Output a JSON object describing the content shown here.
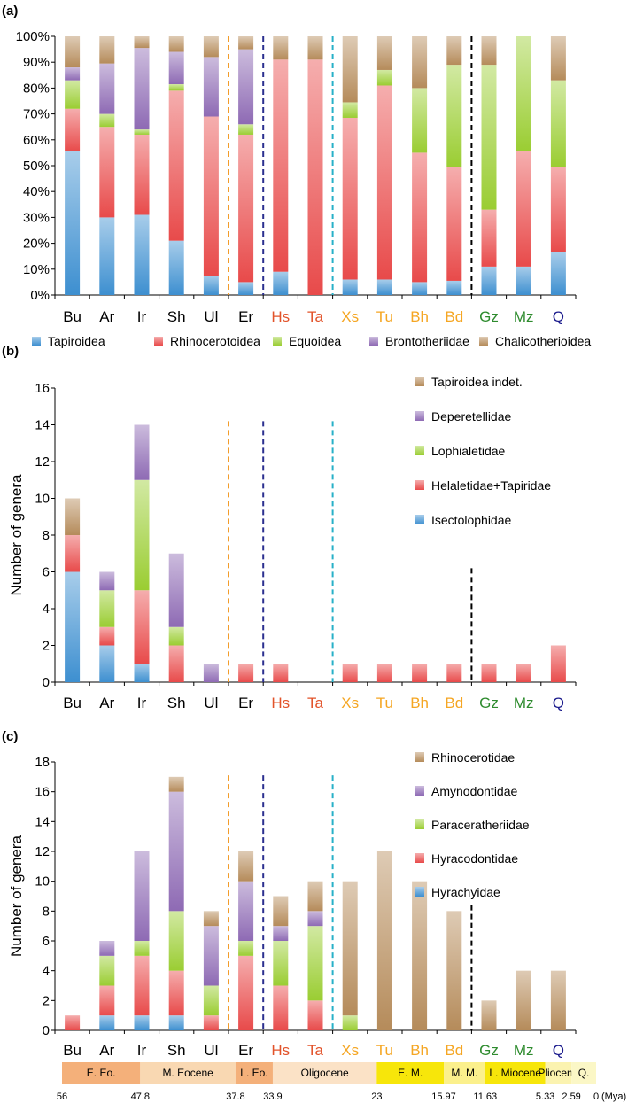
{
  "categories": [
    "Bu",
    "Ar",
    "Ir",
    "Sh",
    "Ul",
    "Er",
    "Hs",
    "Ta",
    "Xs",
    "Tu",
    "Bh",
    "Bd",
    "Gz",
    "Mz",
    "Q"
  ],
  "category_colors": [
    "#000000",
    "#000000",
    "#000000",
    "#000000",
    "#000000",
    "#000000",
    "#e2532a",
    "#e2532a",
    "#f5a623",
    "#f5a623",
    "#f5a623",
    "#f5a623",
    "#2e8b2e",
    "#2e8b2e",
    "#1a1a8c"
  ],
  "divider_lines": [
    {
      "after_index": 4,
      "color": "#f39c2a"
    },
    {
      "after_index": 5,
      "color": "#2b2f8f"
    },
    {
      "after_index": 7,
      "color": "#27b0c8"
    },
    {
      "after_index": 11,
      "color": "#000000"
    }
  ],
  "chart_data": [
    {
      "panel": "(a)",
      "type": "bar",
      "stacked": true,
      "normalized": true,
      "ylim": [
        0,
        100
      ],
      "yticks": [
        "0%",
        "10%",
        "20%",
        "30%",
        "40%",
        "50%",
        "60%",
        "70%",
        "80%",
        "90%",
        "100%"
      ],
      "ylabel": "",
      "legend_position": "bottom",
      "categories": [
        "Bu",
        "Ar",
        "Ir",
        "Sh",
        "Ul",
        "Er",
        "Hs",
        "Ta",
        "Xs",
        "Tu",
        "Bh",
        "Bd",
        "Gz",
        "Mz",
        "Q"
      ],
      "series": [
        {
          "name": "Tapiroidea",
          "color": "#3d8fd0",
          "values": [
            55.5,
            30,
            31,
            21,
            7.5,
            5,
            9,
            0,
            6,
            6,
            5,
            5.5,
            11,
            11,
            16.5
          ]
        },
        {
          "name": "Rhinocerotoidea",
          "color": "#e84a4a",
          "values": [
            16.5,
            35,
            31,
            58,
            61.5,
            57,
            82,
            91,
            62.5,
            75,
            50,
            44,
            22,
            44.5,
            33
          ]
        },
        {
          "name": "Equoidea",
          "color": "#9acd32",
          "values": [
            11,
            5,
            2,
            2.5,
            0,
            4,
            0,
            0,
            6,
            6,
            25,
            39.5,
            56,
            44.5,
            33.5
          ]
        },
        {
          "name": "Brontotheriidae",
          "color": "#8e6ab4",
          "values": [
            5,
            19.5,
            31.5,
            12.5,
            23,
            29,
            0,
            0,
            0,
            0,
            0,
            0,
            0,
            0,
            0
          ]
        },
        {
          "name": "Chalicotherioidea",
          "color": "#b58b5a",
          "values": [
            12,
            10.5,
            4.5,
            6,
            8,
            5,
            9,
            9,
            25.5,
            13,
            20,
            11,
            11,
            0,
            17
          ]
        }
      ]
    },
    {
      "panel": "(b)",
      "type": "bar",
      "stacked": true,
      "ylim": [
        0,
        16
      ],
      "yticks": [
        "0",
        "2",
        "4",
        "6",
        "8",
        "10",
        "12",
        "14",
        "16"
      ],
      "ylabel": "Number of genera",
      "legend_position": "top-right",
      "categories": [
        "Bu",
        "Ar",
        "Ir",
        "Sh",
        "Ul",
        "Er",
        "Hs",
        "Ta",
        "Xs",
        "Tu",
        "Bh",
        "Bd",
        "Gz",
        "Mz",
        "Q"
      ],
      "series": [
        {
          "name": "Isectolophidae",
          "color": "#3d8fd0",
          "values": [
            6,
            2,
            1,
            0,
            0,
            0,
            0,
            0,
            0,
            0,
            0,
            0,
            0,
            0,
            0
          ]
        },
        {
          "name": "Helaletidae+Tapiridae",
          "color": "#e84a4a",
          "values": [
            2,
            1,
            4,
            2,
            0,
            1,
            1,
            0,
            1,
            1,
            1,
            1,
            1,
            1,
            2
          ]
        },
        {
          "name": "Lophialetidae",
          "color": "#9acd32",
          "values": [
            0,
            2,
            6,
            1,
            0,
            0,
            0,
            0,
            0,
            0,
            0,
            0,
            0,
            0,
            0
          ]
        },
        {
          "name": "Deperetellidae",
          "color": "#8e6ab4",
          "values": [
            0,
            1,
            3,
            4,
            1,
            0,
            0,
            0,
            0,
            0,
            0,
            0,
            0,
            0,
            0
          ]
        },
        {
          "name": "Tapiroidea indet.",
          "color": "#b58b5a",
          "values": [
            2,
            0,
            0,
            0,
            0,
            0,
            0,
            0,
            0,
            0,
            0,
            0,
            0,
            0,
            0
          ]
        }
      ],
      "legend_order": [
        "Tapiroidea indet.",
        "Deperetellidae",
        "Lophialetidae",
        "Helaletidae+Tapiridae",
        "Isectolophidae"
      ]
    },
    {
      "panel": "(c)",
      "type": "bar",
      "stacked": true,
      "ylim": [
        0,
        18
      ],
      "yticks": [
        "0",
        "2",
        "4",
        "6",
        "8",
        "10",
        "12",
        "14",
        "16",
        "18"
      ],
      "ylabel": "Number of genera",
      "legend_position": "top-right",
      "categories": [
        "Bu",
        "Ar",
        "Ir",
        "Sh",
        "Ul",
        "Er",
        "Hs",
        "Ta",
        "Xs",
        "Tu",
        "Bh",
        "Bd",
        "Gz",
        "Mz",
        "Q"
      ],
      "series": [
        {
          "name": "Hyrachyidae",
          "color": "#3d8fd0",
          "values": [
            0,
            1,
            1,
            1,
            0,
            0,
            0,
            0,
            0,
            0,
            0,
            0,
            0,
            0,
            0
          ]
        },
        {
          "name": "Hyracodontidae",
          "color": "#e84a4a",
          "values": [
            1,
            2,
            4,
            3,
            1,
            5,
            3,
            2,
            0,
            0,
            0,
            0,
            0,
            0,
            0
          ]
        },
        {
          "name": "Paraceratheriidae",
          "color": "#9acd32",
          "values": [
            0,
            2,
            1,
            4,
            2,
            1,
            3,
            5,
            1,
            0,
            0,
            0,
            0,
            0,
            0
          ]
        },
        {
          "name": "Amynodontidae",
          "color": "#8e6ab4",
          "values": [
            0,
            1,
            6,
            8,
            4,
            4,
            1,
            1,
            0,
            0,
            0,
            0,
            0,
            0,
            0
          ]
        },
        {
          "name": "Rhinocerotidae",
          "color": "#b58b5a",
          "values": [
            0,
            0,
            0,
            1,
            1,
            2,
            2,
            2,
            9,
            12,
            10,
            8,
            2,
            4,
            4
          ]
        }
      ],
      "legend_order": [
        "Rhinocerotidae",
        "Amynodontidae",
        "Paraceratheriidae",
        "Hyracodontidae",
        "Hyrachyidae"
      ]
    }
  ],
  "timescale": {
    "epochs": [
      {
        "label": "E. Eo.",
        "start_mya": 56,
        "end_mya": 47.8,
        "color": "#f4b07a"
      },
      {
        "label": "M. Eocene",
        "start_mya": 47.8,
        "end_mya": 37.8,
        "color": "#f9d8b2"
      },
      {
        "label": "L. Eo.",
        "start_mya": 37.8,
        "end_mya": 33.9,
        "color": "#f4b07a"
      },
      {
        "label": "Oligocene",
        "start_mya": 33.9,
        "end_mya": 23,
        "color": "#fbe2c6"
      },
      {
        "label": "E. M.",
        "start_mya": 23,
        "end_mya": 15.97,
        "color": "#f7e60a"
      },
      {
        "label": "M. M.",
        "start_mya": 15.97,
        "end_mya": 11.63,
        "color": "#fbf08c"
      },
      {
        "label": "L. Miocene",
        "start_mya": 11.63,
        "end_mya": 5.33,
        "color": "#f7e60a"
      },
      {
        "label": "Pliocene",
        "start_mya": 5.33,
        "end_mya": 2.59,
        "color": "#fbf3b0"
      },
      {
        "label": "Q.",
        "start_mya": 2.59,
        "end_mya": 0,
        "color": "#fbf7c6"
      }
    ],
    "boundary_labels": [
      "56",
      "47.8",
      "37.8",
      "33.9",
      "23",
      "15.97",
      "11.63",
      "5.33",
      "2.59",
      "0"
    ],
    "unit": "(Mya)"
  }
}
